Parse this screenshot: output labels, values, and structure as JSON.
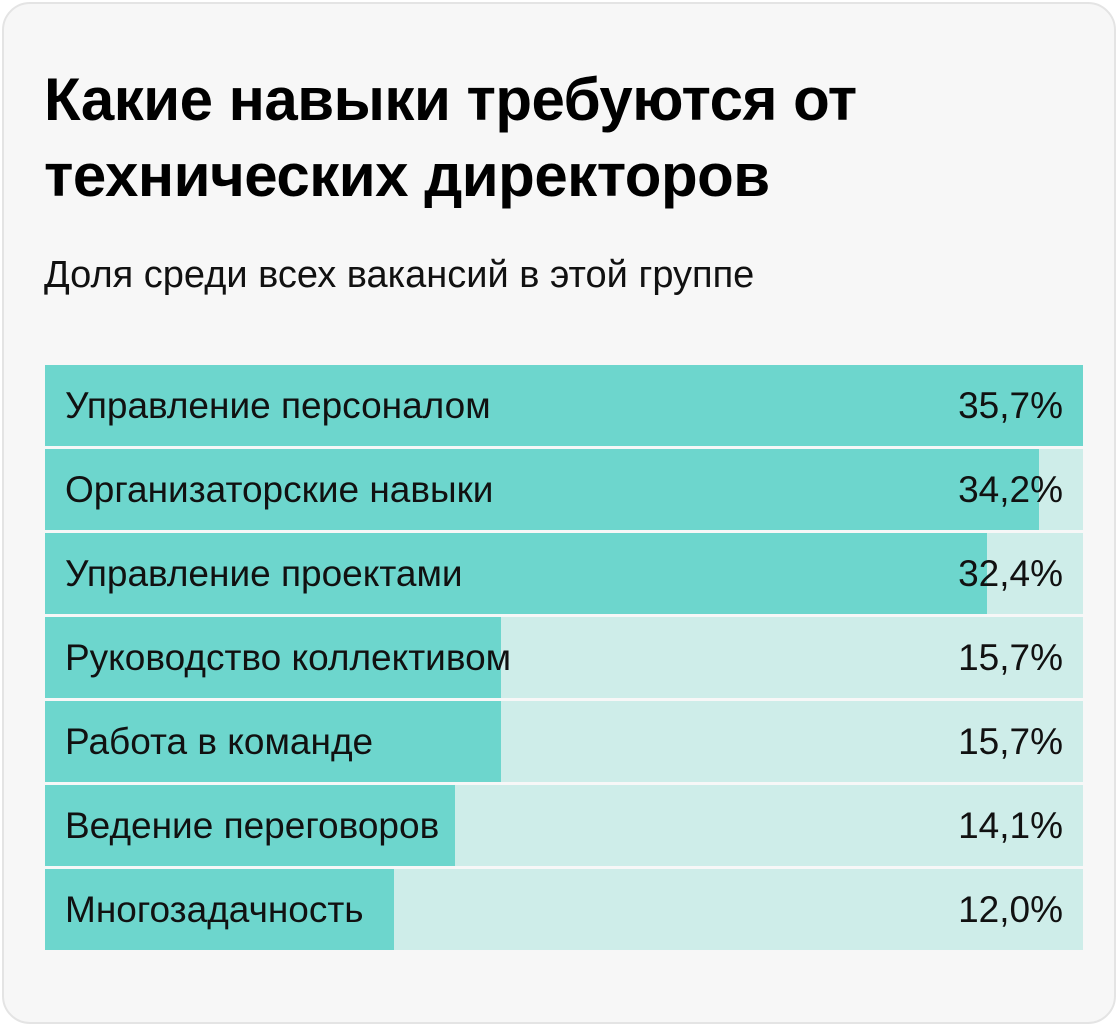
{
  "chart_data": {
    "type": "bar",
    "orientation": "horizontal",
    "title": "Какие навыки требуются от технических директоров",
    "subtitle": "Доля среди всех вакансий в этой группе",
    "categories": [
      "Управление персоналом",
      "Организаторские навыки",
      "Управление проектами",
      "Руководство коллективом",
      "Работа в команде",
      "Ведение переговоров",
      "Многозадачность"
    ],
    "values": [
      35.7,
      34.2,
      32.4,
      15.7,
      15.7,
      14.1,
      12.0
    ],
    "value_labels": [
      "35,7%",
      "34,2%",
      "32,4%",
      "15,7%",
      "15,7%",
      "14,1%",
      "12,0%"
    ],
    "xlim": [
      0,
      35.7
    ],
    "grid": false,
    "colors": {
      "bar_fill": "#6dd6cd",
      "bar_track": "#ceede9",
      "card_background": "#f7f7f7"
    }
  }
}
